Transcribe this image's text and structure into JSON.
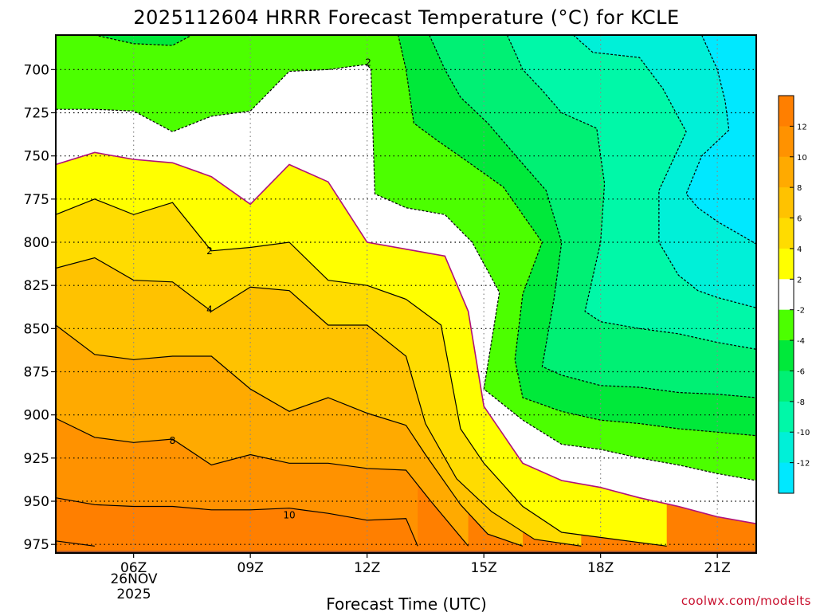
{
  "chart_data": {
    "type": "heatmap",
    "title": "2025112604 HRRR Forecast Temperature (°C) for KCLE",
    "xlabel": "Forecast Time (UTC)",
    "ylabel": "",
    "x_ticks": [
      "06Z",
      "09Z",
      "12Z",
      "15Z",
      "18Z",
      "21Z"
    ],
    "x_tick_hours": [
      6,
      9,
      12,
      15,
      18,
      21
    ],
    "xlim_hours": [
      4,
      22
    ],
    "date_label": [
      "26NOV",
      "2025"
    ],
    "y_ticks": [
      700,
      725,
      750,
      775,
      800,
      825,
      850,
      875,
      900,
      925,
      950,
      975
    ],
    "ylim_hPa": [
      680,
      980
    ],
    "y_scale": "pressure (decreasing upward)",
    "grid": "dotted",
    "colorbar": {
      "position": "right",
      "levels": [
        {
          "lo": 12,
          "hi": 14,
          "color": "#ff7f00"
        },
        {
          "lo": 10,
          "hi": 12,
          "color": "#ff9200"
        },
        {
          "lo": 8,
          "hi": 10,
          "color": "#ffaa00"
        },
        {
          "lo": 6,
          "hi": 8,
          "color": "#ffc200"
        },
        {
          "lo": 4,
          "hi": 6,
          "color": "#ffdc00"
        },
        {
          "lo": 2,
          "hi": 4,
          "color": "#ffff00"
        },
        {
          "lo": -2,
          "hi": 2,
          "color": "#ffffff"
        },
        {
          "lo": -4,
          "hi": -2,
          "color": "#4cff00"
        },
        {
          "lo": -6,
          "hi": -4,
          "color": "#00e93a"
        },
        {
          "lo": -8,
          "hi": -6,
          "color": "#00f074"
        },
        {
          "lo": -10,
          "hi": -8,
          "color": "#00f8a8"
        },
        {
          "lo": -12,
          "hi": -10,
          "color": "#00f0d8"
        },
        {
          "lo": -14,
          "hi": -12,
          "color": "#00e8ff"
        }
      ],
      "tick_labels": [
        "12",
        "10",
        "8",
        "6",
        "4",
        "2",
        "-2",
        "-4",
        "-6",
        "-8",
        "-10",
        "-12"
      ],
      "tick_values": [
        12,
        10,
        8,
        6,
        4,
        2,
        -2,
        -4,
        -6,
        -8,
        -10,
        -12
      ]
    },
    "contour_labels": [
      {
        "text": "2",
        "hour": 12.03,
        "hPa": 696
      },
      {
        "text": "2",
        "hour": 7.95,
        "hPa": 805
      },
      {
        "text": "4",
        "hour": 7.95,
        "hPa": 839
      },
      {
        "text": "8",
        "hour": 7.0,
        "hPa": 915
      },
      {
        "text": "10",
        "hour": 10.0,
        "hPa": 958
      }
    ],
    "freezing_line_color": "#b0107a",
    "ground_color": "#a0522d",
    "ground_hPa": 976,
    "series": [
      {
        "level_lo": 12,
        "level_hi": 14,
        "points": [
          [
            4.0,
            973
          ],
          [
            5.0,
            976
          ]
        ]
      },
      {
        "level_lo": 10,
        "level_hi": 12,
        "points": [
          [
            4.0,
            948
          ],
          [
            5.0,
            952
          ],
          [
            6.0,
            953
          ],
          [
            7.0,
            953
          ],
          [
            8.0,
            955
          ],
          [
            9.0,
            955
          ],
          [
            10.0,
            954
          ],
          [
            11.0,
            957
          ],
          [
            12.0,
            961
          ],
          [
            13.0,
            960
          ],
          [
            13.3,
            976
          ]
        ]
      },
      {
        "level_lo": 8,
        "level_hi": 10,
        "points": [
          [
            4.0,
            902
          ],
          [
            5.0,
            913
          ],
          [
            6.0,
            916
          ],
          [
            7.0,
            914
          ],
          [
            8.0,
            929
          ],
          [
            9.0,
            923
          ],
          [
            10.0,
            928
          ],
          [
            11.0,
            928
          ],
          [
            12.0,
            931
          ],
          [
            13.0,
            932
          ],
          [
            13.6,
            949
          ],
          [
            14.6,
            976
          ]
        ]
      },
      {
        "level_lo": 6,
        "level_hi": 8,
        "points": [
          [
            4.0,
            848
          ],
          [
            5.0,
            865
          ],
          [
            6.0,
            868
          ],
          [
            7.0,
            866
          ],
          [
            8.0,
            866
          ],
          [
            9.0,
            885
          ],
          [
            10.0,
            898
          ],
          [
            11.0,
            890
          ],
          [
            12.0,
            899
          ],
          [
            13.0,
            906
          ],
          [
            13.5,
            923
          ],
          [
            14.4,
            952
          ],
          [
            15.1,
            969
          ],
          [
            16.0,
            976
          ]
        ]
      },
      {
        "level_lo": 4,
        "level_hi": 6,
        "points": [
          [
            4.0,
            815
          ],
          [
            5.0,
            809
          ],
          [
            6.0,
            822
          ],
          [
            7.0,
            823
          ],
          [
            8.0,
            840
          ],
          [
            9.0,
            826
          ],
          [
            10.0,
            828
          ],
          [
            11.0,
            848
          ],
          [
            12.0,
            848
          ],
          [
            13.0,
            866
          ],
          [
            13.5,
            905
          ],
          [
            14.3,
            937
          ],
          [
            15.2,
            956
          ],
          [
            16.3,
            972
          ],
          [
            17.5,
            976
          ]
        ]
      },
      {
        "level_lo": 2,
        "level_hi": 4,
        "points": [
          [
            4.0,
            784
          ],
          [
            5.0,
            775
          ],
          [
            6.0,
            784
          ],
          [
            7.0,
            777
          ],
          [
            8.0,
            805
          ],
          [
            9.0,
            803
          ],
          [
            10.0,
            800
          ],
          [
            11.0,
            822
          ],
          [
            12.0,
            825
          ],
          [
            13.0,
            833
          ],
          [
            13.9,
            848
          ],
          [
            14.4,
            908
          ],
          [
            15.0,
            928
          ],
          [
            16.0,
            953
          ],
          [
            17.0,
            968
          ],
          [
            19.7,
            976
          ]
        ]
      },
      {
        "level_lo": -2,
        "level_hi": 2,
        "points": [
          [
            4.0,
            755
          ],
          [
            5.0,
            748
          ],
          [
            6.0,
            752
          ],
          [
            7.0,
            754
          ],
          [
            8.0,
            762
          ],
          [
            9.0,
            778
          ],
          [
            10.0,
            755
          ],
          [
            11.0,
            765
          ],
          [
            12.0,
            800
          ],
          [
            13.0,
            804
          ],
          [
            14.0,
            808
          ],
          [
            14.6,
            840
          ],
          [
            15.0,
            895
          ],
          [
            16.0,
            928
          ],
          [
            17.0,
            938
          ],
          [
            18.0,
            942
          ],
          [
            19.0,
            948
          ],
          [
            20.0,
            953
          ],
          [
            21.0,
            959
          ],
          [
            22.0,
            963
          ]
        ]
      },
      {
        "level_lo": -4,
        "level_hi": -2,
        "points": [
          [
            4.0,
            723
          ],
          [
            5.0,
            723
          ],
          [
            6.0,
            724
          ],
          [
            7.0,
            736
          ],
          [
            8.0,
            727
          ],
          [
            9.0,
            724
          ],
          [
            10.0,
            701
          ],
          [
            11.0,
            700
          ],
          [
            12.0,
            697
          ],
          [
            12.1,
            700
          ],
          [
            12.2,
            772
          ],
          [
            13.0,
            780
          ],
          [
            14.0,
            784
          ],
          [
            14.7,
            800
          ],
          [
            15.4,
            829
          ],
          [
            15.0,
            885
          ],
          [
            16.0,
            903
          ],
          [
            17.0,
            917
          ],
          [
            18.0,
            920
          ],
          [
            19.0,
            925
          ],
          [
            20.0,
            929
          ],
          [
            21.0,
            934
          ],
          [
            22.0,
            938
          ]
        ]
      },
      {
        "level_lo": -6,
        "level_hi": -4,
        "points": [
          [
            5.0,
            680
          ],
          [
            6.0,
            685
          ],
          [
            7.0,
            686
          ],
          [
            7.5,
            680
          ],
          [
            12.8,
            680
          ],
          [
            13.0,
            700
          ],
          [
            13.2,
            731
          ],
          [
            13.8,
            741
          ],
          [
            14.5,
            752
          ],
          [
            15.5,
            768
          ],
          [
            16.5,
            800
          ],
          [
            16.0,
            830
          ],
          [
            15.8,
            868
          ],
          [
            16.0,
            890
          ],
          [
            17.0,
            898
          ],
          [
            18.0,
            903
          ],
          [
            19.0,
            905
          ],
          [
            20.0,
            908
          ],
          [
            21.0,
            910
          ],
          [
            22.0,
            912
          ]
        ]
      },
      {
        "level_lo": -8,
        "level_hi": -6,
        "points": [
          [
            13.6,
            680
          ],
          [
            14.0,
            700
          ],
          [
            14.4,
            716
          ],
          [
            15.1,
            731
          ],
          [
            15.9,
            752
          ],
          [
            16.6,
            770
          ],
          [
            17.0,
            800
          ],
          [
            16.8,
            833
          ],
          [
            16.5,
            872
          ],
          [
            17.0,
            877
          ],
          [
            18.0,
            883
          ],
          [
            19.0,
            884
          ],
          [
            20.0,
            887
          ],
          [
            21.0,
            888
          ],
          [
            22.0,
            890
          ]
        ]
      },
      {
        "level_lo": -10,
        "level_hi": -8,
        "points": [
          [
            15.6,
            680
          ],
          [
            16.0,
            700
          ],
          [
            16.5,
            712
          ],
          [
            17.0,
            725
          ],
          [
            17.9,
            734
          ],
          [
            18.1,
            766
          ],
          [
            18.0,
            800
          ],
          [
            17.6,
            840
          ],
          [
            18.0,
            846
          ],
          [
            19.0,
            850
          ],
          [
            20.0,
            853
          ],
          [
            21.0,
            858
          ],
          [
            22.0,
            862
          ]
        ]
      },
      {
        "level_lo": -12,
        "level_hi": -10,
        "points": [
          [
            17.3,
            680
          ],
          [
            17.8,
            690
          ],
          [
            19.0,
            693
          ],
          [
            19.6,
            711
          ],
          [
            20.2,
            736
          ],
          [
            19.5,
            770
          ],
          [
            19.5,
            800
          ],
          [
            20.0,
            819
          ],
          [
            20.5,
            828
          ],
          [
            21.0,
            832
          ],
          [
            22.0,
            838
          ]
        ]
      },
      {
        "level_lo": -14,
        "level_hi": -12,
        "points": [
          [
            20.6,
            680
          ],
          [
            21.0,
            700
          ],
          [
            21.2,
            718
          ],
          [
            21.3,
            735
          ],
          [
            20.6,
            750
          ],
          [
            20.2,
            772
          ],
          [
            20.5,
            780
          ],
          [
            21.0,
            788
          ],
          [
            22.0,
            801
          ]
        ]
      }
    ]
  },
  "watermark": "coolwx.com/modelts"
}
